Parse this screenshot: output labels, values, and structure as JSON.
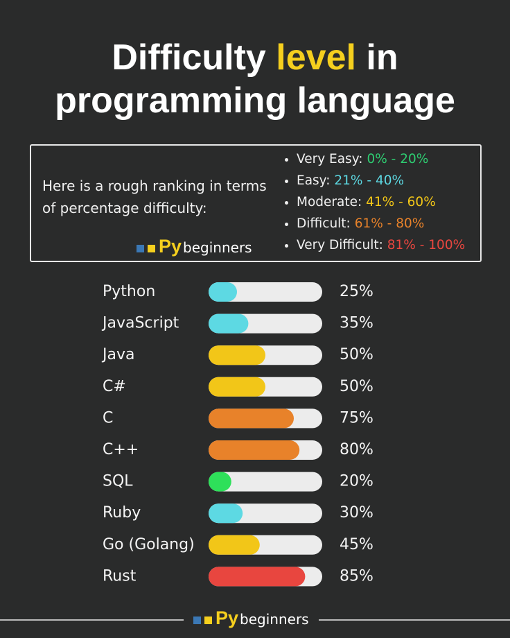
{
  "header": {
    "title_start": "Difficulty",
    "title_highlight": "level",
    "title_end": "in",
    "title_line2": "programming language"
  },
  "ranking": {
    "intro": "Here is a rough ranking in terms of percentage difficulty:",
    "items": [
      {
        "label": "Very Easy:",
        "range": "0% - 20%",
        "color": "#2ecc71"
      },
      {
        "label": "Easy:",
        "range": "21% - 40%",
        "color": "#5dd9e3"
      },
      {
        "label": "Moderate:",
        "range": "41% - 60%",
        "color": "#f2c618"
      },
      {
        "label": "Difficult:",
        "range": "61% - 80%",
        "color": "#e8822a"
      },
      {
        "label": "Very Difficult:",
        "range": "81% - 100%",
        "color": "#e8463f"
      }
    ]
  },
  "logo": {
    "mark": "Py",
    "text": "beginners"
  },
  "chart_data": {
    "type": "bar",
    "orientation": "horizontal",
    "categories": [
      "Python",
      "JavaScript",
      "Java",
      "C#",
      "C",
      "C++",
      "SQL",
      "Ruby",
      "Go (Golang)",
      "Rust"
    ],
    "values": [
      25,
      35,
      50,
      50,
      75,
      80,
      20,
      30,
      45,
      85
    ],
    "value_labels": [
      "25%",
      "35%",
      "50%",
      "50%",
      "75%",
      "80%",
      "20%",
      "30%",
      "45%",
      "85%"
    ],
    "colors": [
      "#5dd9e3",
      "#5dd9e3",
      "#f2c618",
      "#f2c618",
      "#e8822a",
      "#e8822a",
      "#2ee05a",
      "#5dd9e3",
      "#f2c618",
      "#e8463f"
    ],
    "track_color": "#ececec",
    "xlim": [
      0,
      100
    ]
  }
}
